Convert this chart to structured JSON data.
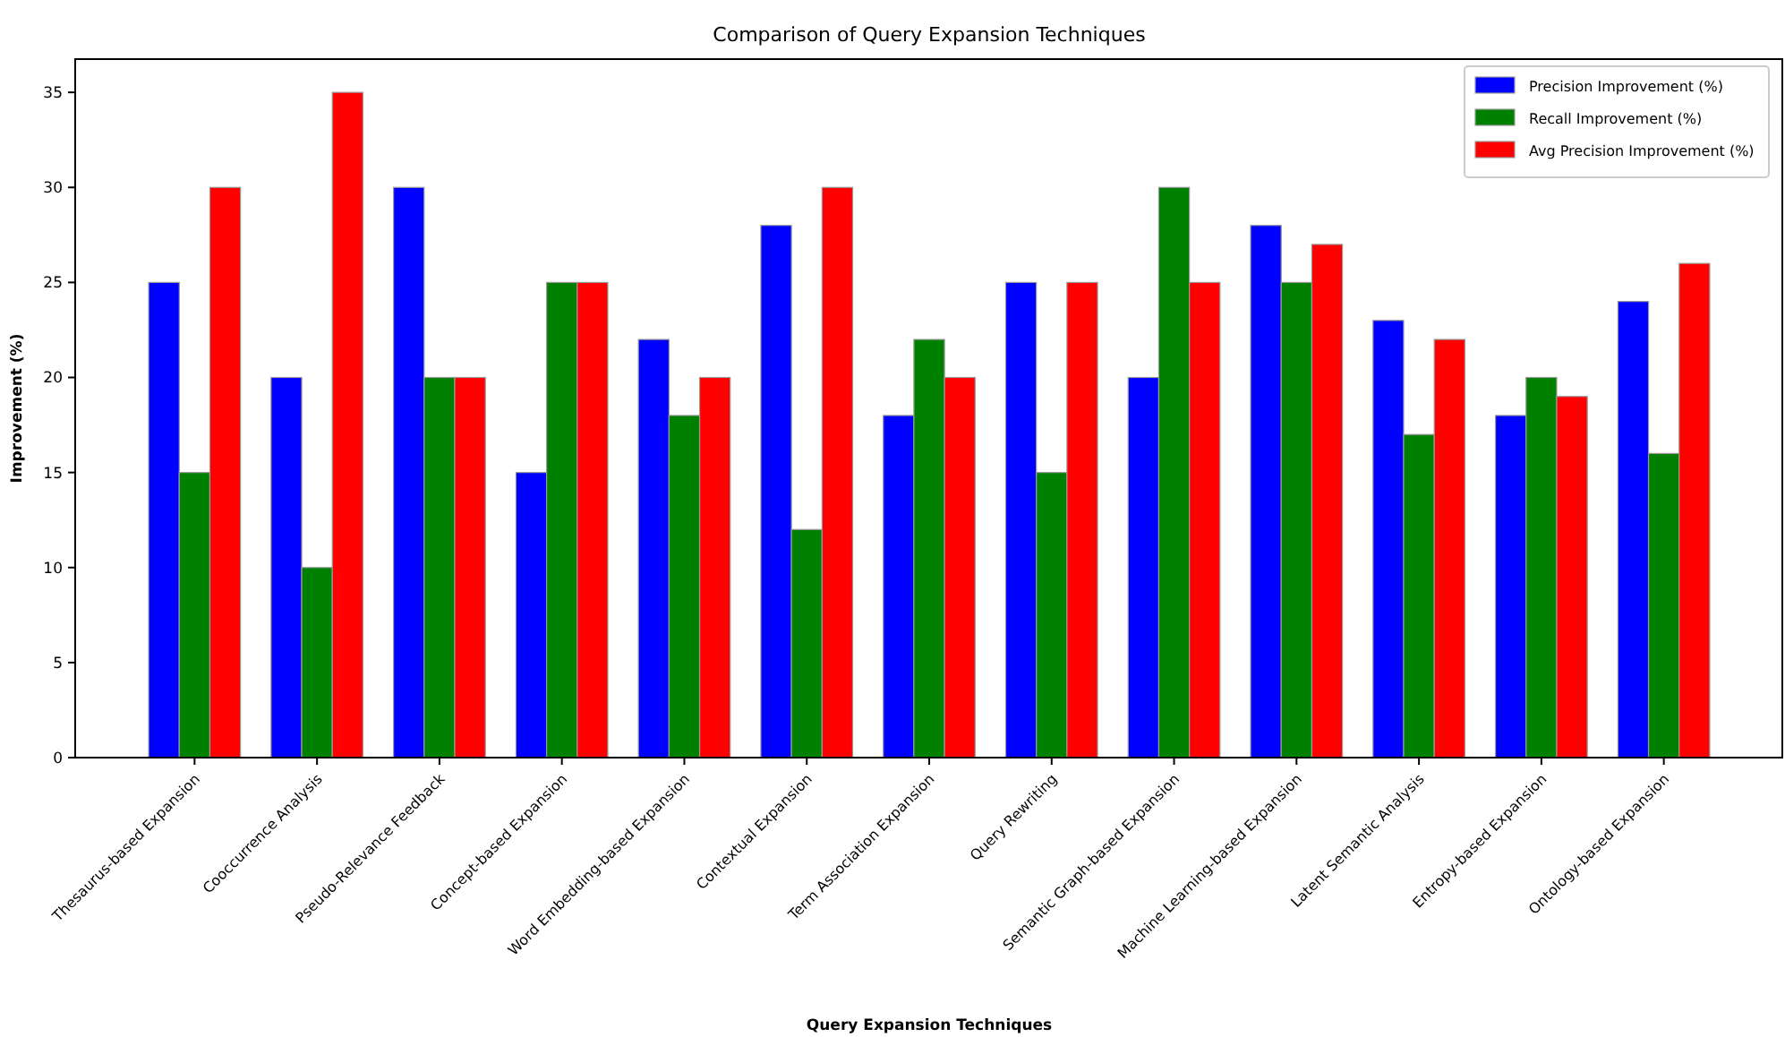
{
  "chart_data": {
    "type": "bar",
    "title": "Comparison of Query Expansion Techniques",
    "xlabel": "Query Expansion Techniques",
    "ylabel": "Improvement (%)",
    "categories": [
      "Thesaurus-based Expansion",
      "Cooccurrence Analysis",
      "Pseudo-Relevance Feedback",
      "Concept-based Expansion",
      "Word Embedding-based Expansion",
      "Contextual Expansion",
      "Term Association Expansion",
      "Query Rewriting",
      "Semantic Graph-based Expansion",
      "Machine Learning-based Expansion",
      "Latent Semantic Analysis",
      "Entropy-based Expansion",
      "Ontology-based Expansion"
    ],
    "series": [
      {
        "name": "Precision Improvement (%)",
        "color": "#0000ff",
        "values": [
          25,
          20,
          30,
          15,
          22,
          28,
          18,
          25,
          20,
          28,
          23,
          18,
          24
        ]
      },
      {
        "name": "Recall Improvement (%)",
        "color": "#008000",
        "values": [
          15,
          10,
          20,
          25,
          18,
          12,
          22,
          15,
          30,
          25,
          17,
          20,
          16
        ]
      },
      {
        "name": "Avg Precision Improvement (%)",
        "color": "#ff0000",
        "values": [
          30,
          35,
          20,
          25,
          20,
          30,
          20,
          25,
          25,
          27,
          22,
          19,
          26
        ]
      }
    ],
    "ylim": [
      0,
      36.75
    ],
    "yticks": [
      0,
      5,
      10,
      15,
      20,
      25,
      30,
      35
    ],
    "grid": false,
    "legend": "top right"
  }
}
